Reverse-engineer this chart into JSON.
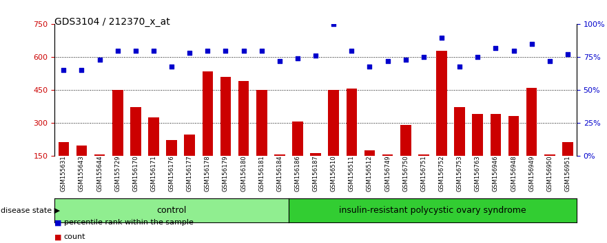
{
  "title": "GDS3104 / 212370_x_at",
  "samples": [
    "GSM155631",
    "GSM155643",
    "GSM155644",
    "GSM155729",
    "GSM156170",
    "GSM156171",
    "GSM156176",
    "GSM156177",
    "GSM156178",
    "GSM156179",
    "GSM156180",
    "GSM156181",
    "GSM156184",
    "GSM156186",
    "GSM156187",
    "GSM156510",
    "GSM156511",
    "GSM156512",
    "GSM156749",
    "GSM156750",
    "GSM156751",
    "GSM156752",
    "GSM156753",
    "GSM156763",
    "GSM156946",
    "GSM156948",
    "GSM156949",
    "GSM156950",
    "GSM156951"
  ],
  "bar_values": [
    210,
    195,
    155,
    450,
    370,
    325,
    220,
    245,
    535,
    510,
    490,
    450,
    155,
    305,
    160,
    450,
    455,
    175,
    155,
    290,
    155,
    630,
    370,
    340,
    340,
    330,
    460,
    155,
    210
  ],
  "scatter_values": [
    65,
    65,
    73,
    80,
    80,
    80,
    68,
    78,
    80,
    80,
    80,
    80,
    72,
    74,
    76,
    100,
    80,
    68,
    72,
    73,
    75,
    90,
    68,
    75,
    82,
    80,
    85,
    72,
    77
  ],
  "group1_label": "control",
  "group1_count": 13,
  "group2_label": "insulin-resistant polycystic ovary syndrome",
  "group2_count": 16,
  "disease_state_label": "disease state",
  "ylim_left": [
    150,
    750
  ],
  "ylim_right": [
    0,
    100
  ],
  "yticks_left": [
    150,
    300,
    450,
    600,
    750
  ],
  "yticks_right": [
    0,
    25,
    50,
    75,
    100
  ],
  "bar_color": "#CC0000",
  "scatter_color": "#0000CC",
  "bg_color": "#FFFFFF",
  "group1_bg": "#90EE90",
  "group2_bg": "#32CD32",
  "label_count": "count",
  "label_pct": "percentile rank within the sample"
}
